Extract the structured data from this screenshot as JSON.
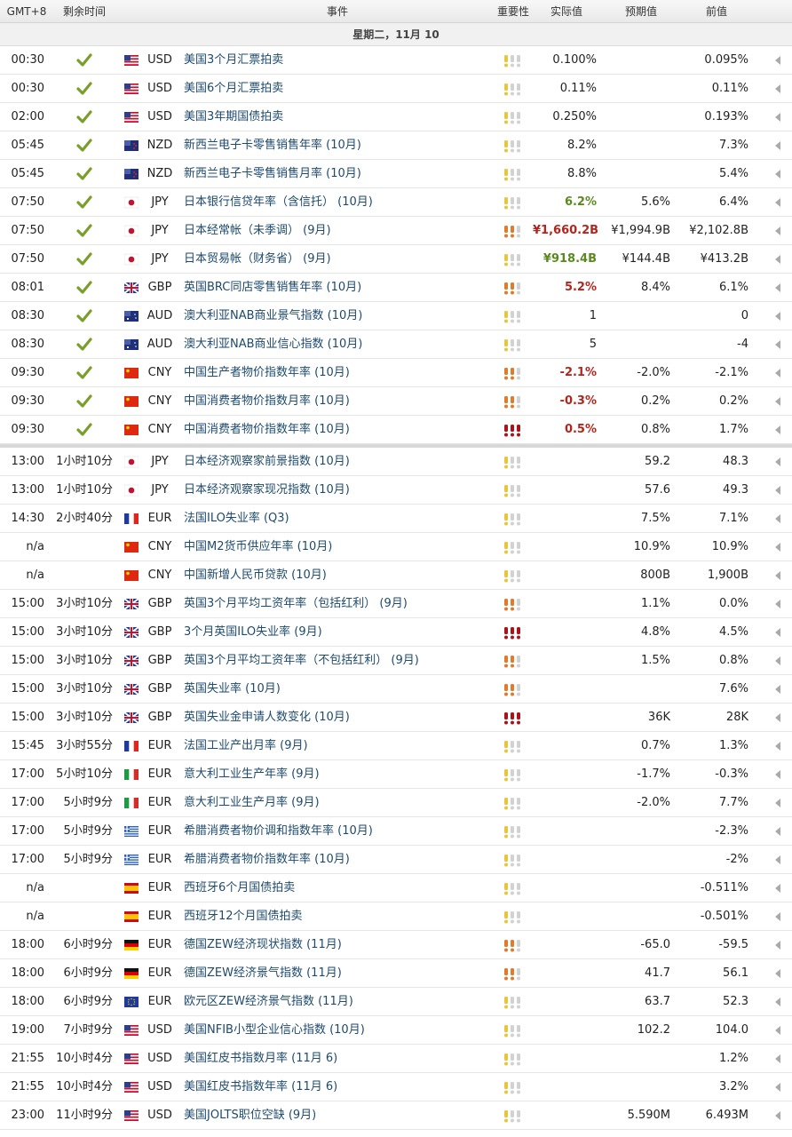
{
  "columns": [
    "GMT+8",
    "剩余时间",
    "事件",
    "重要性",
    "实际值",
    "预期值",
    "前值"
  ],
  "date": "星期二，11月 10",
  "groups": [
    {
      "rows": [
        {
          "time": "00:30",
          "done": true,
          "flag": "us",
          "currency": "USD",
          "event": "美国3个月汇票拍卖",
          "importance": 1,
          "actual": "0.100%",
          "previous": "0.095%"
        },
        {
          "time": "00:30",
          "done": true,
          "flag": "us",
          "currency": "USD",
          "event": "美国6个月汇票拍卖",
          "importance": 1,
          "actual": "0.11%",
          "previous": "0.11%"
        },
        {
          "time": "02:00",
          "done": true,
          "flag": "us",
          "currency": "USD",
          "event": "美国3年期国债拍卖",
          "importance": 1,
          "actual": "0.250%",
          "previous": "0.193%"
        },
        {
          "time": "05:45",
          "done": true,
          "flag": "nz",
          "currency": "NZD",
          "event": "新西兰电子卡零售销售年率 (10月)",
          "importance": 1,
          "actual": "8.2%",
          "previous": "7.3%"
        },
        {
          "time": "05:45",
          "done": true,
          "flag": "nz",
          "currency": "NZD",
          "event": "新西兰电子卡零售销售月率 (10月)",
          "importance": 1,
          "actual": "8.8%",
          "previous": "5.4%"
        },
        {
          "time": "07:50",
          "done": true,
          "flag": "jp",
          "currency": "JPY",
          "event": "日本银行信贷年率（含信托） (10月)",
          "importance": 1,
          "actual": "6.2%",
          "actual_color": "#5a8a1e",
          "forecast": "5.6%",
          "previous": "6.4%"
        },
        {
          "time": "07:50",
          "done": true,
          "flag": "jp",
          "currency": "JPY",
          "event": "日本经常帐（未季调） (9月)",
          "importance": 2,
          "actual": "¥1,660.2B",
          "actual_color": "#b3261e",
          "forecast": "¥1,994.9B",
          "previous": "¥2,102.8B"
        },
        {
          "time": "07:50",
          "done": true,
          "flag": "jp",
          "currency": "JPY",
          "event": "日本贸易帐（财务省） (9月)",
          "importance": 1,
          "actual": "¥918.4B",
          "actual_color": "#5a8a1e",
          "forecast": "¥144.4B",
          "previous": "¥413.2B"
        },
        {
          "time": "08:01",
          "done": true,
          "flag": "gb",
          "currency": "GBP",
          "event": "英国BRC同店零售销售年率 (10月)",
          "importance": 2,
          "actual": "5.2%",
          "actual_color": "#b3261e",
          "forecast": "8.4%",
          "previous": "6.1%"
        },
        {
          "time": "08:30",
          "done": true,
          "flag": "au",
          "currency": "AUD",
          "event": "澳大利亚NAB商业景气指数 (10月)",
          "importance": 1,
          "actual": "1",
          "previous": "0"
        },
        {
          "time": "08:30",
          "done": true,
          "flag": "au",
          "currency": "AUD",
          "event": "澳大利亚NAB商业信心指数 (10月)",
          "importance": 1,
          "actual": "5",
          "previous": "-4"
        },
        {
          "time": "09:30",
          "done": true,
          "flag": "cn",
          "currency": "CNY",
          "event": "中国生产者物价指数年率 (10月)",
          "importance": 2,
          "actual": "-2.1%",
          "actual_color": "#b3261e",
          "forecast": "-2.0%",
          "previous": "-2.1%"
        },
        {
          "time": "09:30",
          "done": true,
          "flag": "cn",
          "currency": "CNY",
          "event": "中国消费者物价指数月率 (10月)",
          "importance": 2,
          "actual": "-0.3%",
          "actual_color": "#b3261e",
          "forecast": "0.2%",
          "previous": "0.2%"
        },
        {
          "time": "09:30",
          "done": true,
          "flag": "cn",
          "currency": "CNY",
          "event": "中国消费者物价指数年率 (10月)",
          "importance": 3,
          "actual": "0.5%",
          "actual_color": "#b3261e",
          "forecast": "0.8%",
          "previous": "1.7%"
        }
      ]
    },
    {
      "rows": [
        {
          "time": "13:00",
          "remaining": "1小时10分",
          "flag": "jp",
          "currency": "JPY",
          "event": "日本经济观察家前景指数 (10月)",
          "importance": 1,
          "forecast": "59.2",
          "previous": "48.3"
        },
        {
          "time": "13:00",
          "remaining": "1小时10分",
          "flag": "jp",
          "currency": "JPY",
          "event": "日本经济观察家现况指数 (10月)",
          "importance": 1,
          "forecast": "57.6",
          "previous": "49.3"
        },
        {
          "time": "14:30",
          "remaining": "2小时40分",
          "flag": "fr",
          "currency": "EUR",
          "event": "法国ILO失业率 (Q3)",
          "importance": 1,
          "forecast": "7.5%",
          "previous": "7.1%"
        },
        {
          "time": "n/a",
          "flag": "cn",
          "currency": "CNY",
          "event": "中国M2货币供应年率 (10月)",
          "importance": 1,
          "forecast": "10.9%",
          "previous": "10.9%"
        },
        {
          "time": "n/a",
          "flag": "cn",
          "currency": "CNY",
          "event": "中国新增人民币贷款 (10月)",
          "importance": 1,
          "forecast": "800B",
          "previous": "1,900B"
        },
        {
          "time": "15:00",
          "remaining": "3小时10分",
          "flag": "gb",
          "currency": "GBP",
          "event": "英国3个月平均工资年率（包括红利） (9月)",
          "importance": 2,
          "forecast": "1.1%",
          "previous": "0.0%"
        },
        {
          "time": "15:00",
          "remaining": "3小时10分",
          "flag": "gb",
          "currency": "GBP",
          "event": "3个月英国ILO失业率 (9月)",
          "importance": 3,
          "forecast": "4.8%",
          "previous": "4.5%"
        },
        {
          "time": "15:00",
          "remaining": "3小时10分",
          "flag": "gb",
          "currency": "GBP",
          "event": "英国3个月平均工资年率（不包括红利） (9月)",
          "importance": 2,
          "forecast": "1.5%",
          "previous": "0.8%"
        },
        {
          "time": "15:00",
          "remaining": "3小时10分",
          "flag": "gb",
          "currency": "GBP",
          "event": "英国失业率 (10月)",
          "importance": 2,
          "previous": "7.6%"
        },
        {
          "time": "15:00",
          "remaining": "3小时10分",
          "flag": "gb",
          "currency": "GBP",
          "event": "英国失业金申请人数变化 (10月)",
          "importance": 3,
          "forecast": "36K",
          "previous": "28K"
        },
        {
          "time": "15:45",
          "remaining": "3小时55分",
          "flag": "fr",
          "currency": "EUR",
          "event": "法国工业产出月率 (9月)",
          "importance": 1,
          "forecast": "0.7%",
          "previous": "1.3%"
        },
        {
          "time": "17:00",
          "remaining": "5小时10分",
          "flag": "it",
          "currency": "EUR",
          "event": "意大利工业生产年率 (9月)",
          "importance": 1,
          "forecast": "-1.7%",
          "previous": "-0.3%"
        },
        {
          "time": "17:00",
          "remaining": "5小时9分",
          "flag": "it",
          "currency": "EUR",
          "event": "意大利工业生产月率 (9月)",
          "importance": 1,
          "forecast": "-2.0%",
          "previous": "7.7%"
        },
        {
          "time": "17:00",
          "remaining": "5小时9分",
          "flag": "gr",
          "currency": "EUR",
          "event": "希腊消费者物价调和指数年率 (10月)",
          "importance": 1,
          "previous": "-2.3%"
        },
        {
          "time": "17:00",
          "remaining": "5小时9分",
          "flag": "gr",
          "currency": "EUR",
          "event": "希腊消费者物价指数年率 (10月)",
          "importance": 1,
          "previous": "-2%"
        },
        {
          "time": "n/a",
          "flag": "es",
          "currency": "EUR",
          "event": "西班牙6个月国债拍卖",
          "importance": 1,
          "previous": "-0.511%"
        },
        {
          "time": "n/a",
          "flag": "es",
          "currency": "EUR",
          "event": "西班牙12个月国债拍卖",
          "importance": 1,
          "previous": "-0.501%"
        },
        {
          "time": "18:00",
          "remaining": "6小时9分",
          "flag": "de",
          "currency": "EUR",
          "event": "德国ZEW经济现状指数 (11月)",
          "importance": 2,
          "forecast": "-65.0",
          "previous": "-59.5"
        },
        {
          "time": "18:00",
          "remaining": "6小时9分",
          "flag": "de",
          "currency": "EUR",
          "event": "德国ZEW经济景气指数 (11月)",
          "importance": 2,
          "forecast": "41.7",
          "previous": "56.1"
        },
        {
          "time": "18:00",
          "remaining": "6小时9分",
          "flag": "eu",
          "currency": "EUR",
          "event": "欧元区ZEW经济景气指数 (11月)",
          "importance": 1,
          "forecast": "63.7",
          "previous": "52.3"
        },
        {
          "time": "19:00",
          "remaining": "7小时9分",
          "flag": "us",
          "currency": "USD",
          "event": "美国NFIB小型企业信心指数 (10月)",
          "importance": 1,
          "forecast": "102.2",
          "previous": "104.0"
        },
        {
          "time": "21:55",
          "remaining": "10小时4分",
          "flag": "us",
          "currency": "USD",
          "event": "美国红皮书指数月率 (11月 6)",
          "importance": 1,
          "previous": "1.2%"
        },
        {
          "time": "21:55",
          "remaining": "10小时4分",
          "flag": "us",
          "currency": "USD",
          "event": "美国红皮书指数年率 (11月 6)",
          "importance": 1,
          "previous": "3.2%"
        },
        {
          "time": "23:00",
          "remaining": "11小时9分",
          "flag": "us",
          "currency": "USD",
          "event": "美国JOLTS职位空缺 (9月)",
          "importance": 1,
          "forecast": "5.590M",
          "previous": "6.493M"
        }
      ]
    }
  ]
}
